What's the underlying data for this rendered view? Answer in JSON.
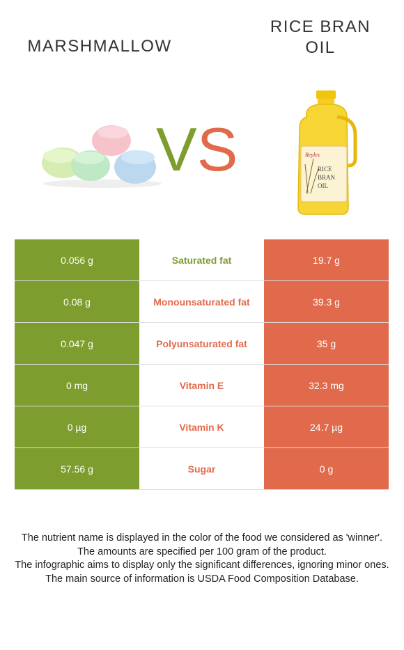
{
  "left_food": {
    "name": "MARSHMALLOW",
    "image": "marshmallow-image"
  },
  "right_food": {
    "name_line1": "RICE BRAN",
    "name_line2": "OIL",
    "image": "oil-bottle-image",
    "bottle_label": [
      "RICE",
      "BRAN",
      "OIL"
    ],
    "brand": "Reyles"
  },
  "vs": {
    "v": "V",
    "s": "S"
  },
  "colors": {
    "left": "#7d9d2e",
    "right": "#e26a4c"
  },
  "rows": [
    {
      "left": "0.056 g",
      "nutrient": "Saturated fat",
      "right": "19.7 g",
      "winner": "left"
    },
    {
      "left": "0.08 g",
      "nutrient": "Monounsaturated fat",
      "right": "39.3 g",
      "winner": "right"
    },
    {
      "left": "0.047 g",
      "nutrient": "Polyunsaturated fat",
      "right": "35 g",
      "winner": "right"
    },
    {
      "left": "0 mg",
      "nutrient": "Vitamin E",
      "right": "32.3 mg",
      "winner": "right"
    },
    {
      "left": "0 µg",
      "nutrient": "Vitamin K",
      "right": "24.7 µg",
      "winner": "right"
    },
    {
      "left": "57.56 g",
      "nutrient": "Sugar",
      "right": "0 g",
      "winner": "right"
    }
  ],
  "footnotes": [
    "The nutrient name is displayed in the color of the food we considered as 'winner'.",
    "The amounts are specified per 100 gram of the product.",
    "The infographic aims to display only the significant differences, ignoring minor ones.",
    "The main source of information is USDA Food Composition Database."
  ]
}
